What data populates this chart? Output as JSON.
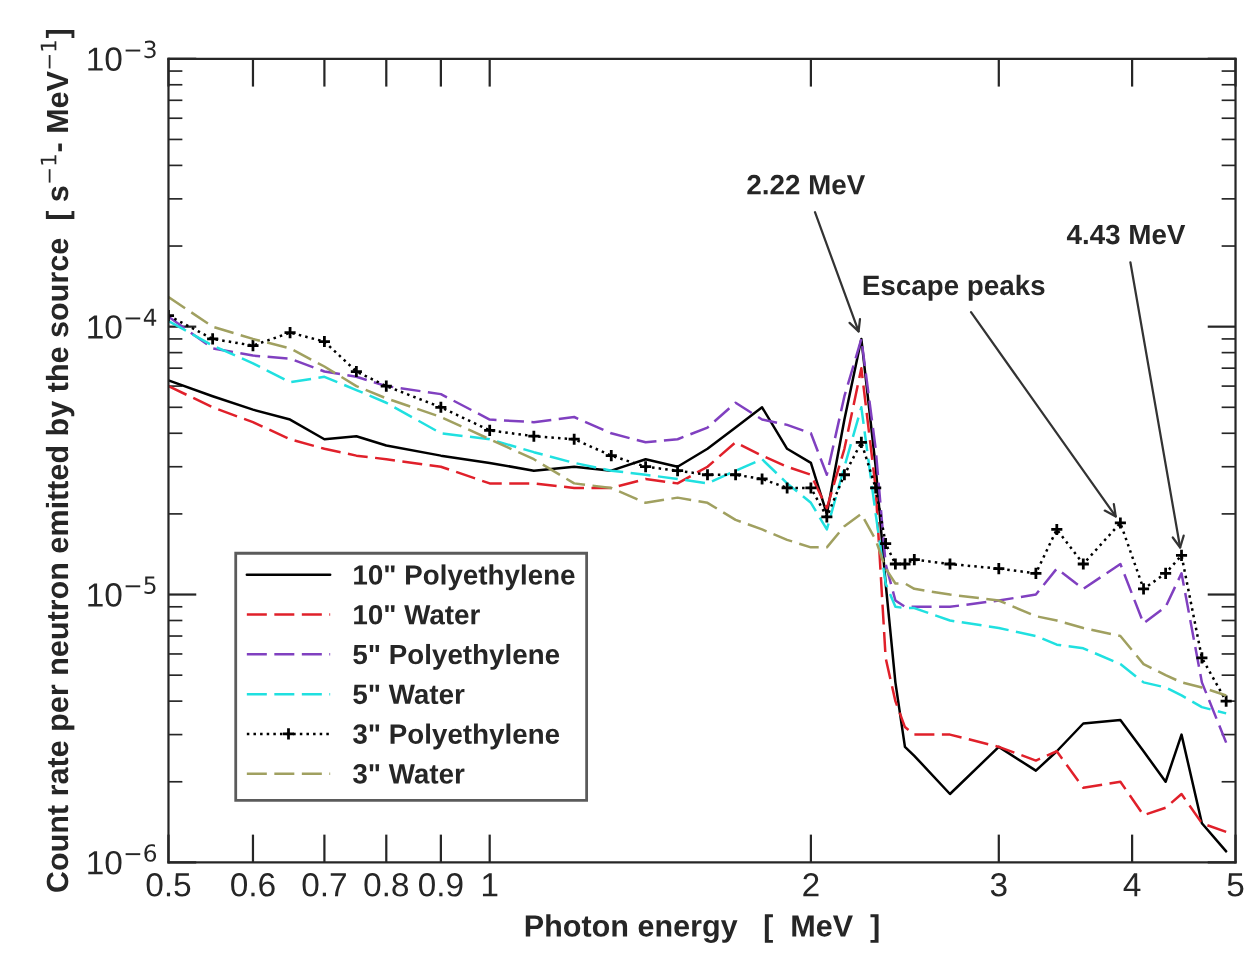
{
  "chart_data": {
    "type": "line",
    "xlabel": "Photon energy   [  MeV  ]",
    "ylabel": "Count rate per neutron emitted by the source  [ s$^{−1}$- MeV$^{−1}$]",
    "log": "xy",
    "grid": false,
    "legend": "bottom left",
    "xlim": [
      0.5,
      5.0
    ],
    "ylim": [
      1e-06,
      0.001
    ],
    "xticks": [
      0.5,
      0.6,
      0.7,
      0.8,
      0.9,
      1,
      2,
      3,
      4,
      5
    ],
    "yticks": [
      {
        "value": 1e-06,
        "label": "10$^{−6}$"
      },
      {
        "value": 1e-05,
        "label": "10$^{−5}$"
      },
      {
        "value": 0.0001,
        "label": "10$^{−4}$"
      },
      {
        "value": 0.001,
        "label": "10$^{−3}$"
      }
    ],
    "annotations": [
      {
        "text": "2.22 MeV",
        "x": 2.23,
        "y": 9e-05
      },
      {
        "text": "Escape peaks",
        "x": 3.9,
        "y": 1.85e-05
      },
      {
        "text": "4.43 MeV",
        "x": 4.45,
        "y": 1.4e-05
      }
    ],
    "x": [
      0.5,
      0.55,
      0.6,
      0.65,
      0.7,
      0.75,
      0.8,
      0.9,
      1.0,
      1.1,
      1.2,
      1.3,
      1.4,
      1.5,
      1.6,
      1.7,
      1.8,
      1.9,
      2.0,
      2.07,
      2.15,
      2.23,
      2.3,
      2.35,
      2.4,
      2.45,
      2.5,
      2.7,
      3.0,
      3.25,
      3.4,
      3.6,
      3.9,
      4.1,
      4.3,
      4.45,
      4.65,
      4.9
    ],
    "series": [
      {
        "name": "10\" Polyethylene",
        "color": "#000000",
        "line_style": "solid",
        "values": [
          6.3e-05,
          5.5e-05,
          4.9e-05,
          4.5e-05,
          3.8e-05,
          3.9e-05,
          3.6e-05,
          3.3e-05,
          3.1e-05,
          2.9e-05,
          3e-05,
          2.9e-05,
          3.2e-05,
          3e-05,
          3.5e-05,
          4.2e-05,
          5e-05,
          3.5e-05,
          3.1e-05,
          2e-05,
          4.5e-05,
          9e-05,
          3e-05,
          1.1e-05,
          4.7e-06,
          2.7e-06,
          2.5e-06,
          1.8e-06,
          2.7e-06,
          2.2e-06,
          2.6e-06,
          3.3e-06,
          3.4e-06,
          2.6e-06,
          2e-06,
          3e-06,
          1.4e-06,
          1.1e-06
        ]
      },
      {
        "name": "10\" Water",
        "color": "#e0202a",
        "line_style": "dashed",
        "values": [
          6e-05,
          5e-05,
          4.4e-05,
          3.8e-05,
          3.5e-05,
          3.3e-05,
          3.2e-05,
          3e-05,
          2.6e-05,
          2.6e-05,
          2.5e-05,
          2.5e-05,
          2.7e-05,
          2.6e-05,
          3e-05,
          3.7e-05,
          3.3e-05,
          3e-05,
          2.8e-05,
          2.1e-05,
          3.5e-05,
          7e-05,
          2.5e-05,
          5.8e-06,
          4e-06,
          3.2e-06,
          3e-06,
          3e-06,
          2.7e-06,
          2.4e-06,
          2.6e-06,
          1.9e-06,
          2e-06,
          1.5e-06,
          1.6e-06,
          1.8e-06,
          1.4e-06,
          1.3e-06
        ]
      },
      {
        "name": "5\" Polyethylene",
        "color": "#8040c0",
        "line_style": "dashed",
        "values": [
          0.000109,
          8.3e-05,
          7.8e-05,
          7.6e-05,
          6.8e-05,
          6.5e-05,
          6e-05,
          5.6e-05,
          4.5e-05,
          4.4e-05,
          4.6e-05,
          4e-05,
          3.7e-05,
          3.8e-05,
          4.2e-05,
          5.2e-05,
          4.5e-05,
          4.3e-05,
          4e-05,
          2.8e-05,
          5.5e-05,
          9e-05,
          3.5e-05,
          1.3e-05,
          9.5e-06,
          9e-06,
          9e-06,
          9e-06,
          9.5e-06,
          1e-05,
          1.25e-05,
          1.05e-05,
          1.3e-05,
          7.8e-06,
          9e-06,
          1.2e-05,
          4.7e-06,
          2.8e-06
        ]
      },
      {
        "name": "5\" Water",
        "color": "#20e0e0",
        "line_style": "dashed",
        "values": [
          0.000105,
          8.5e-05,
          7.3e-05,
          6.2e-05,
          6.5e-05,
          5.8e-05,
          5.2e-05,
          4e-05,
          3.8e-05,
          3.4e-05,
          3.1e-05,
          2.9e-05,
          2.8e-05,
          2.7e-05,
          2.6e-05,
          2.9e-05,
          3.2e-05,
          2.6e-05,
          2.2e-05,
          1.75e-05,
          3e-05,
          5e-05,
          2e-05,
          1.1e-05,
          9e-06,
          8.9e-06,
          8.9e-06,
          8e-06,
          7.5e-06,
          7e-06,
          6.5e-06,
          6.3e-06,
          5.5e-06,
          4.7e-06,
          4.5e-06,
          4.2e-06,
          3.8e-06,
          3.6e-06
        ]
      },
      {
        "name": "3\" Polyethylene",
        "color": "#000000",
        "line_style": "dotted",
        "marker": "cross",
        "values": [
          0.00011,
          9e-05,
          8.5e-05,
          9.5e-05,
          8.8e-05,
          6.8e-05,
          6e-05,
          5e-05,
          4.1e-05,
          3.9e-05,
          3.8e-05,
          3.3e-05,
          3e-05,
          2.9e-05,
          2.8e-05,
          2.8e-05,
          2.7e-05,
          2.5e-05,
          2.5e-05,
          1.95e-05,
          2.8e-05,
          3.7e-05,
          2.5e-05,
          1.55e-05,
          1.3e-05,
          1.3e-05,
          1.35e-05,
          1.3e-05,
          1.25e-05,
          1.2e-05,
          1.75e-05,
          1.3e-05,
          1.85e-05,
          1.05e-05,
          1.2e-05,
          1.4e-05,
          5.8e-06,
          4e-06
        ]
      },
      {
        "name": "3\" Water",
        "color": "#a0a060",
        "line_style": "dashed",
        "values": [
          0.000129,
          0.0001,
          9e-05,
          8.3e-05,
          7.1e-05,
          6e-05,
          5.4e-05,
          4.6e-05,
          3.8e-05,
          3.2e-05,
          2.6e-05,
          2.5e-05,
          2.2e-05,
          2.3e-05,
          2.2e-05,
          1.9e-05,
          1.75e-05,
          1.6e-05,
          1.5e-05,
          1.5e-05,
          1.8e-05,
          2e-05,
          1.6e-05,
          1.25e-05,
          1.1e-05,
          1.1e-05,
          1.05e-05,
          1e-05,
          9.5e-06,
          8.3e-06,
          8e-06,
          7.5e-06,
          7e-06,
          5.5e-06,
          5e-06,
          4.7e-06,
          4.5e-06,
          4.2e-06
        ]
      }
    ]
  }
}
